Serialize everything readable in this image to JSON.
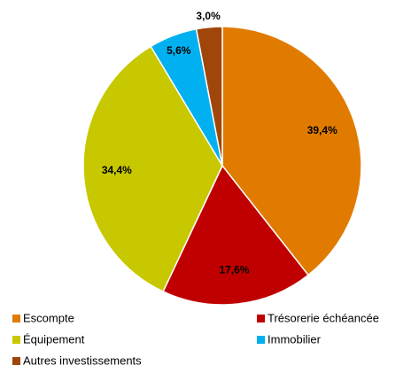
{
  "chart_data": {
    "type": "pie",
    "categories": [
      "Escompte",
      "Trésorerie échéancée",
      "Équipement",
      "Immobilier",
      "Autres investissements"
    ],
    "values": [
      39.4,
      17.6,
      34.4,
      5.6,
      3.0
    ],
    "value_labels": [
      "39,4%",
      "17,6%",
      "34,4%",
      "5,6%",
      "3,0%"
    ],
    "colors": [
      "#e07b00",
      "#c00000",
      "#c8c800",
      "#00b0f0",
      "#a0460a"
    ]
  }
}
